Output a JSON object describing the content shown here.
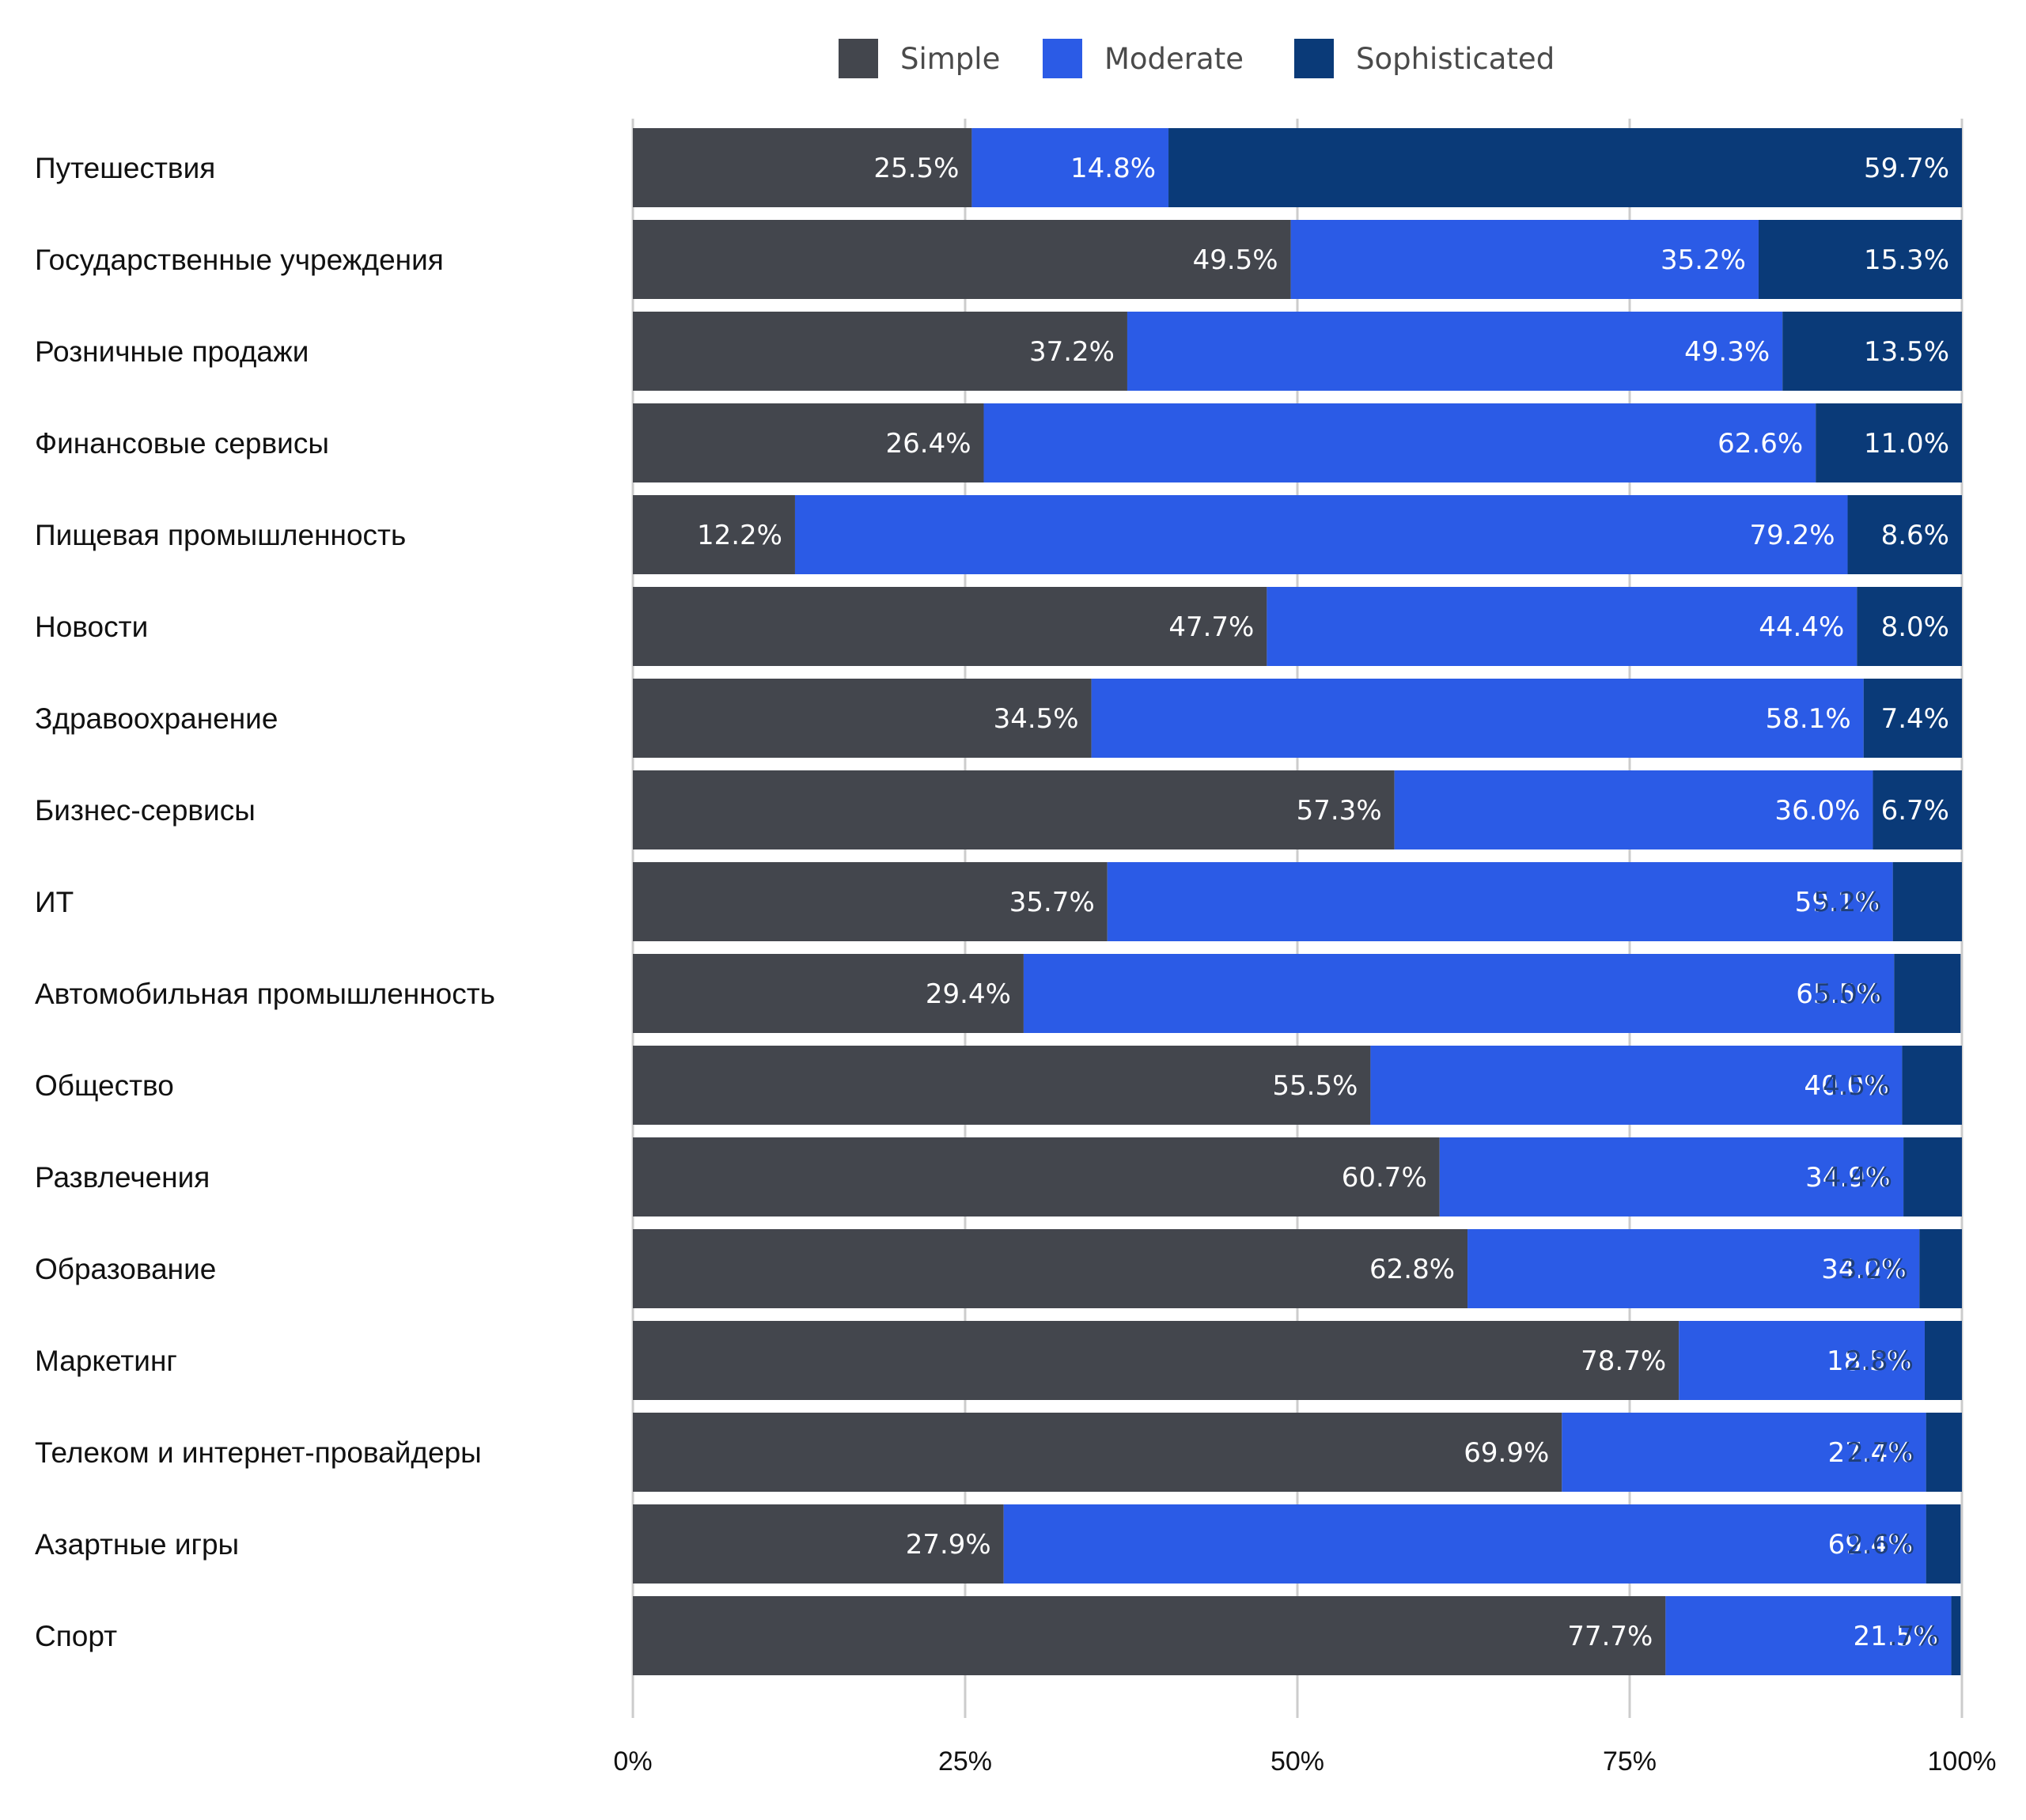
{
  "chart_data": {
    "type": "bar",
    "orientation": "horizontal",
    "stacked": true,
    "legend_position": "top-center",
    "grid": true,
    "xlim": [
      0,
      100
    ],
    "x_ticks": [
      "0%",
      "25%",
      "50%",
      "75%",
      "100%"
    ],
    "categories": [
      "Путешествия",
      "Государственные учреждения",
      "Розничные продажи",
      "Финансовые сервисы",
      "Пищевая промышленность",
      "Новости",
      "Здравоохранение",
      "Бизнес-сервисы",
      "ИТ",
      "Автомобильная промышленность",
      "Общество",
      "Развлечения",
      "Образование",
      "Маркетинг",
      "Телеком и интернет-провайдеры",
      "Азартные игры",
      "Спорт"
    ],
    "series": [
      {
        "name": "Simple",
        "color": "#43464d",
        "label_color": "#ffffff",
        "values": [
          25.5,
          49.5,
          37.2,
          26.4,
          12.2,
          47.7,
          34.5,
          57.3,
          35.7,
          29.4,
          55.5,
          60.7,
          62.8,
          78.7,
          69.9,
          27.9,
          77.7
        ],
        "labels": [
          "25.5%",
          "49.5%",
          "37.2%",
          "26.4%",
          "12.2%",
          "47.7%",
          "34.5%",
          "57.3%",
          "35.7%",
          "29.4%",
          "55.5%",
          "60.7%",
          "62.8%",
          "78.7%",
          "69.9%",
          "27.9%",
          "77.7%"
        ]
      },
      {
        "name": "Moderate",
        "color": "#2b5be6",
        "label_color": "#ffffff",
        "values": [
          14.8,
          35.2,
          49.3,
          62.6,
          79.2,
          44.4,
          58.1,
          36.0,
          59.1,
          65.5,
          40.0,
          34.9,
          34.0,
          18.5,
          27.4,
          69.4,
          21.5
        ],
        "labels": [
          "14.8%",
          "35.2%",
          "49.3%",
          "62.6%",
          "79.2%",
          "44.4%",
          "58.1%",
          "36.0%",
          "59.1%",
          "65.5%",
          "40.0%",
          "34.9%",
          "34.0%",
          "18.5%",
          "27.4%",
          "69.4%",
          "21.5%"
        ]
      },
      {
        "name": "Sophisticated",
        "color": "#0a3a78",
        "label_color": "#ffffff",
        "label_color_outside": "#1f3f7a",
        "values": [
          59.7,
          15.3,
          13.5,
          11.0,
          8.6,
          8.0,
          7.4,
          6.7,
          5.2,
          5.0,
          4.5,
          4.4,
          3.2,
          2.8,
          2.7,
          2.6,
          0.7
        ],
        "labels": [
          "59.7%",
          "15.3%",
          "13.5%",
          "11.0%",
          "8.6%",
          "8.0%",
          "7.4%",
          "6.7%",
          "5.2%",
          "5.0%",
          "4.5%",
          "4.4%",
          "3.2%",
          "2.8%",
          "2.7%",
          "2.6%",
          ".7%"
        ]
      }
    ],
    "gridline_color": "#cccccc"
  }
}
